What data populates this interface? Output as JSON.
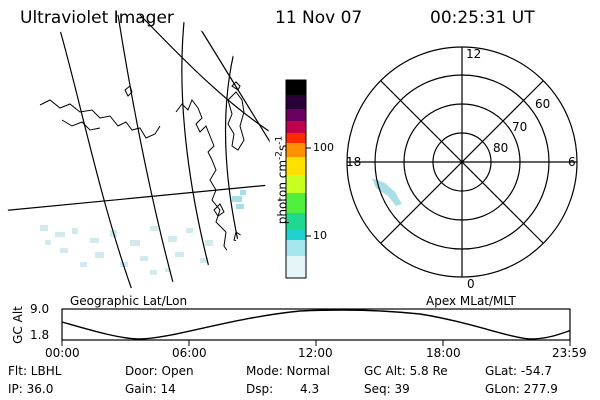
{
  "header": {
    "title": "Ultraviolet Imager",
    "date": "11 Nov 07",
    "time": "00:25:31 UT"
  },
  "colorbar": {
    "label": "photon cm",
    "label_exp1": "-2",
    "label_mid": "s",
    "label_exp2": "-1",
    "tick_100": "100",
    "tick_10": "10",
    "colors": [
      "#000000",
      "#2a0038",
      "#6a0060",
      "#a0005a",
      "#d0003a",
      "#ff2a00",
      "#ff8a00",
      "#ffd000",
      "#e8ff20",
      "#8aff20",
      "#20e060",
      "#20d0c8",
      "#bfeef2",
      "#eaf8fa"
    ]
  },
  "polar": {
    "hour_labels": {
      "top": "12",
      "left": "18",
      "right": "6",
      "bottom": "0"
    },
    "lat_labels": [
      "60",
      "70",
      "80"
    ]
  },
  "geo_label": "Geographic Lat/Lon",
  "apex_label": "Apex MLat/MLT",
  "altitude_plot": {
    "ylabel": "GC Alt",
    "yticks": [
      "9.0",
      "1.8"
    ],
    "xticks": [
      "00:00",
      "06:00",
      "12:00",
      "18:00",
      "23:59"
    ]
  },
  "info": {
    "flt": "Flt: LBHL",
    "ip": "IP: 36.0",
    "door": "Door: Open",
    "gain": "Gain: 14",
    "mode": "Mode: Normal",
    "dsp_label": "Dsp:",
    "dsp_value": "4.3",
    "gcalt": "GC Alt: 5.8 Re",
    "seq": "Seq: 39",
    "glat": "GLat: -54.7",
    "glon": "GLon: 277.9"
  }
}
